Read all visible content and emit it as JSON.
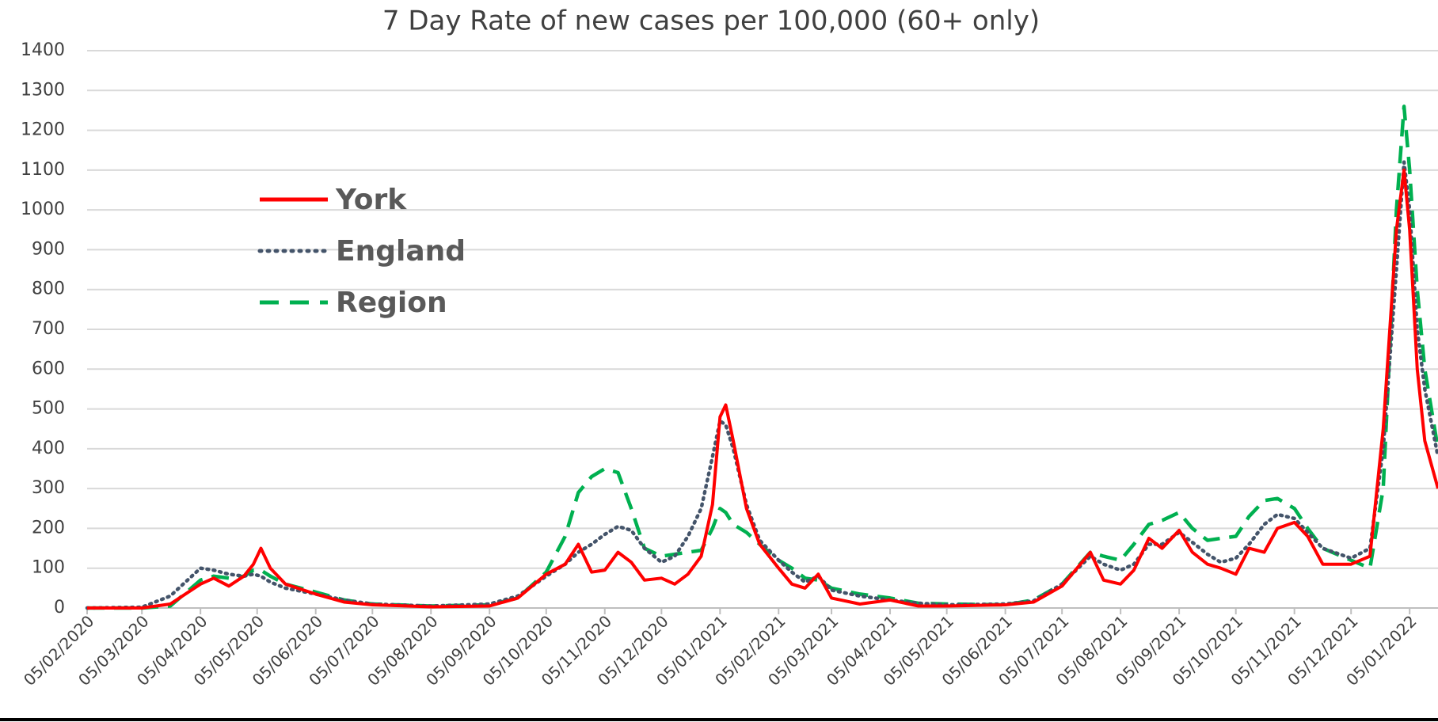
{
  "chart_data": {
    "type": "line",
    "title": "7 Day Rate of new cases per 100,000 (60+ only)",
    "x": [
      "05/02/2020",
      "05/03/2020",
      "20/03/2020",
      "05/04/2020",
      "12/04/2020",
      "20/04/2020",
      "28/04/2020",
      "03/05/2020",
      "07/05/2020",
      "12/05/2020",
      "20/05/2020",
      "05/06/2020",
      "20/06/2020",
      "05/07/2020",
      "05/08/2020",
      "05/09/2020",
      "20/09/2020",
      "05/10/2020",
      "15/10/2020",
      "22/10/2020",
      "29/10/2020",
      "05/11/2020",
      "12/11/2020",
      "19/11/2020",
      "26/11/2020",
      "05/12/2020",
      "12/12/2020",
      "19/12/2020",
      "26/12/2020",
      "01/01/2021",
      "05/01/2021",
      "08/01/2021",
      "12/01/2021",
      "19/01/2021",
      "26/01/2021",
      "05/02/2021",
      "12/02/2021",
      "19/02/2021",
      "26/02/2021",
      "05/03/2021",
      "20/03/2021",
      "05/04/2021",
      "20/04/2021",
      "05/05/2021",
      "05/06/2021",
      "20/06/2021",
      "05/07/2021",
      "20/07/2021",
      "27/07/2021",
      "05/08/2021",
      "12/08/2021",
      "20/08/2021",
      "27/08/2021",
      "05/09/2021",
      "12/09/2021",
      "20/09/2021",
      "27/09/2021",
      "05/10/2021",
      "12/10/2021",
      "20/10/2021",
      "27/10/2021",
      "05/11/2021",
      "12/11/2021",
      "20/11/2021",
      "05/12/2021",
      "15/12/2021",
      "22/12/2021",
      "29/12/2021",
      "02/01/2022",
      "05/01/2022",
      "09/01/2022",
      "13/01/2022",
      "20/01/2022"
    ],
    "series": [
      {
        "name": "York",
        "color": "#ff0000",
        "style": "solid",
        "values": [
          0,
          0,
          10,
          60,
          75,
          55,
          80,
          110,
          150,
          100,
          60,
          35,
          15,
          8,
          3,
          5,
          25,
          85,
          110,
          160,
          90,
          95,
          140,
          115,
          70,
          75,
          60,
          85,
          130,
          260,
          480,
          510,
          420,
          250,
          160,
          100,
          60,
          50,
          85,
          25,
          10,
          20,
          5,
          5,
          8,
          15,
          55,
          140,
          70,
          60,
          95,
          175,
          150,
          195,
          140,
          110,
          100,
          85,
          150,
          140,
          200,
          215,
          180,
          110,
          110,
          130,
          450,
          950,
          1100,
          950,
          600,
          420,
          300
        ]
      },
      {
        "name": "England",
        "color": "#44546a",
        "style": "dotted",
        "values": [
          0,
          2,
          30,
          100,
          95,
          85,
          80,
          85,
          80,
          65,
          50,
          35,
          20,
          10,
          5,
          10,
          30,
          80,
          110,
          140,
          160,
          185,
          205,
          195,
          150,
          115,
          130,
          180,
          250,
          380,
          470,
          460,
          400,
          260,
          170,
          120,
          90,
          65,
          80,
          45,
          30,
          20,
          12,
          8,
          10,
          18,
          60,
          130,
          110,
          95,
          110,
          160,
          160,
          190,
          165,
          135,
          115,
          125,
          160,
          210,
          235,
          225,
          190,
          150,
          125,
          150,
          400,
          850,
          1120,
          1000,
          700,
          550,
          380
        ]
      },
      {
        "name": "Region",
        "color": "#00b050",
        "style": "dashed",
        "values": [
          0,
          0,
          5,
          70,
          80,
          75,
          80,
          95,
          95,
          80,
          60,
          40,
          20,
          10,
          5,
          8,
          25,
          90,
          180,
          290,
          330,
          350,
          340,
          250,
          150,
          130,
          135,
          140,
          145,
          200,
          250,
          240,
          210,
          190,
          160,
          120,
          100,
          75,
          70,
          50,
          35,
          25,
          12,
          10,
          8,
          20,
          60,
          140,
          130,
          120,
          160,
          210,
          220,
          240,
          200,
          170,
          175,
          180,
          230,
          270,
          275,
          250,
          200,
          150,
          120,
          100,
          300,
          1000,
          1260,
          1100,
          800,
          600,
          400
        ]
      }
    ],
    "xlim": [
      "05/02/2020",
      "20/01/2022"
    ],
    "xticks": [
      "05/02/2020",
      "05/03/2020",
      "05/04/2020",
      "05/05/2020",
      "05/06/2020",
      "05/07/2020",
      "05/08/2020",
      "05/09/2020",
      "05/10/2020",
      "05/11/2020",
      "05/12/2020",
      "05/01/2021",
      "05/02/2021",
      "05/03/2021",
      "05/04/2021",
      "05/05/2021",
      "05/06/2021",
      "05/07/2021",
      "05/08/2021",
      "05/09/2021",
      "05/10/2021",
      "05/11/2021",
      "05/12/2021",
      "05/01/2022"
    ],
    "ylim": [
      0,
      1400
    ],
    "yticks": [
      0,
      100,
      200,
      300,
      400,
      500,
      600,
      700,
      800,
      900,
      1000,
      1100,
      1200,
      1300,
      1400
    ],
    "grid": true,
    "legend": "upper left"
  }
}
